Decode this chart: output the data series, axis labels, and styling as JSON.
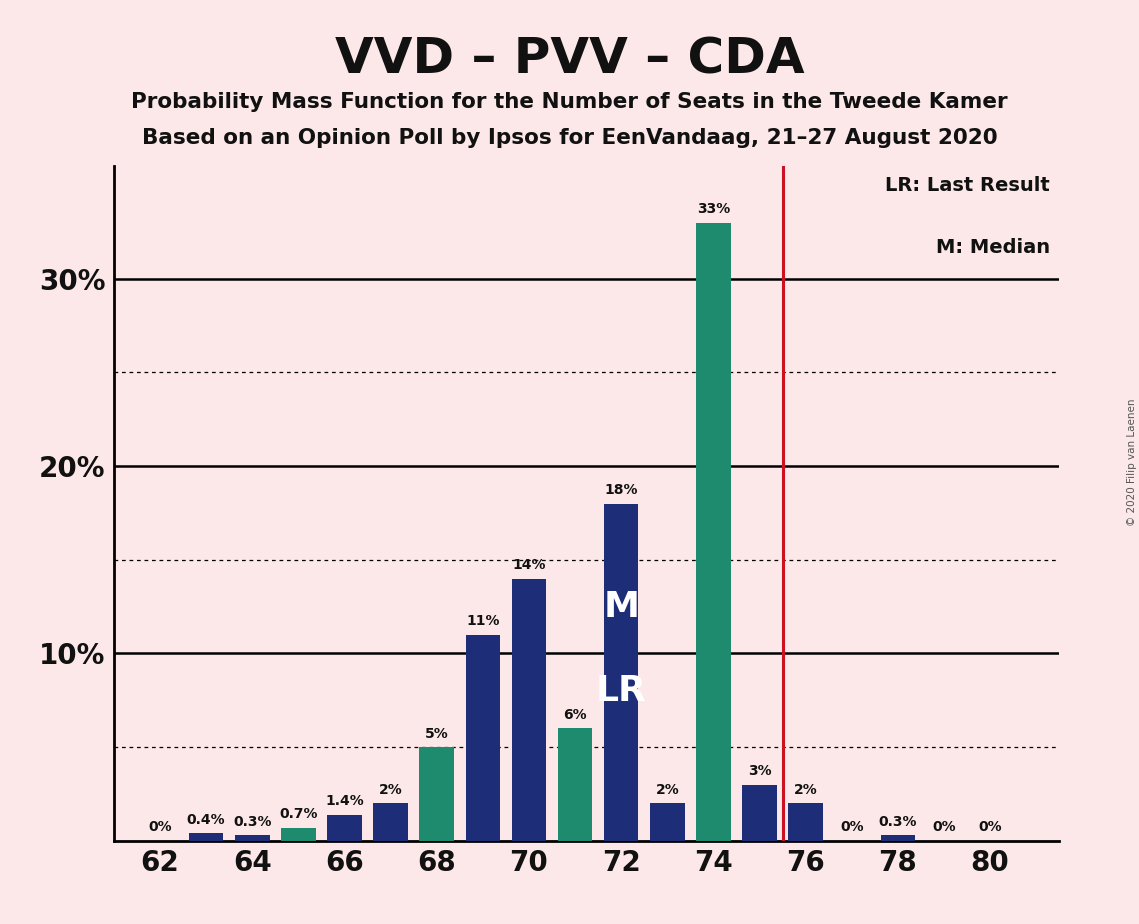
{
  "title": "VVD – PVV – CDA",
  "subtitle1": "Probability Mass Function for the Number of Seats in the Tweede Kamer",
  "subtitle2": "Based on an Opinion Poll by Ipsos for EenVandaag, 21–27 August 2020",
  "copyright": "© 2020 Filip van Laenen",
  "seats": [
    62,
    63,
    64,
    65,
    66,
    67,
    68,
    69,
    70,
    71,
    72,
    73,
    74,
    75,
    76,
    77,
    78,
    79,
    80
  ],
  "values": [
    0.0,
    0.4,
    0.3,
    0.7,
    1.4,
    2.0,
    5.0,
    11.0,
    14.0,
    6.0,
    18.0,
    2.0,
    33.0,
    3.0,
    2.0,
    0.0,
    0.3,
    0.0,
    0.0
  ],
  "colors": [
    "#1e2d78",
    "#1e2d78",
    "#1e2d78",
    "#1e8a6e",
    "#1e2d78",
    "#1e2d78",
    "#1e8a6e",
    "#1e2d78",
    "#1e2d78",
    "#1e8a6e",
    "#1e2d78",
    "#1e2d78",
    "#1e8a6e",
    "#1e2d78",
    "#1e2d78",
    "#1e2d78",
    "#1e2d78",
    "#1e2d78",
    "#1e2d78"
  ],
  "background_color": "#fce8e8",
  "lr_line_x": 75.5,
  "median_label_seat": 72,
  "lr_label_seat": 72,
  "legend_lr": "LR: Last Result",
  "legend_m": "M: Median",
  "ylim_max": 36,
  "solid_gridlines": [
    10,
    20,
    30
  ],
  "dotted_gridlines": [
    5,
    15,
    25
  ],
  "ytick_labels": [
    "10%",
    "20%",
    "30%"
  ],
  "ytick_values": [
    10,
    20,
    30
  ],
  "xtick_values": [
    62,
    64,
    66,
    68,
    70,
    72,
    74,
    76,
    78,
    80
  ],
  "xlim": [
    61.0,
    81.5
  ]
}
